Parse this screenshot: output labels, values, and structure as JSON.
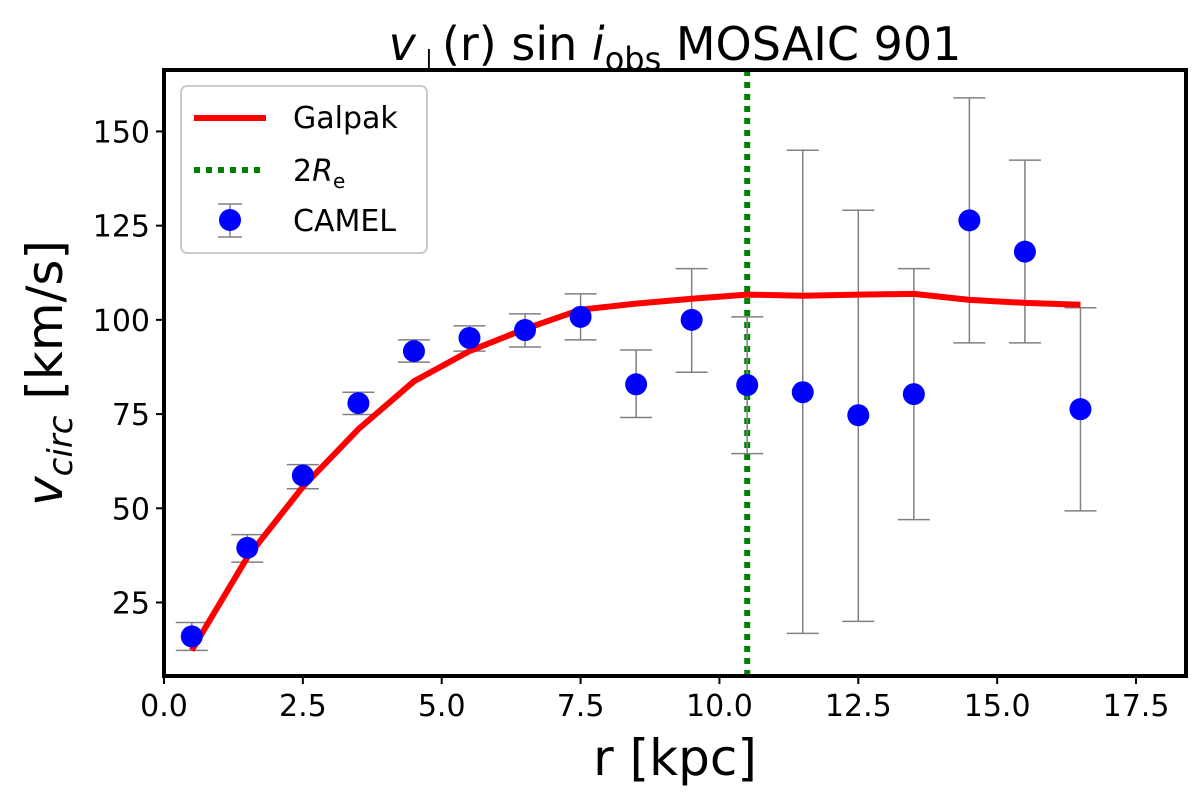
{
  "chart_data": {
    "type": "scatter",
    "title": {
      "main": "v",
      "sub_perp": "⊥",
      "mid": "(r) sin ",
      "i": "i",
      "sub_obs": "obs",
      "tail": " MOSAIC 901"
    },
    "xlabel": "r [kpc]",
    "ylabel": {
      "v": "v",
      "sub": "circ",
      "unit": " [km/s]"
    },
    "xlim": [
      0,
      18.4
    ],
    "ylim": [
      5.5,
      166.3
    ],
    "xticks": [
      0.0,
      2.5,
      5.0,
      7.5,
      10.0,
      12.5,
      15.0,
      17.5
    ],
    "xtick_labels": [
      "0.0",
      "2.5",
      "5.0",
      "7.5",
      "10.0",
      "12.5",
      "15.0",
      "17.5"
    ],
    "yticks": [
      25,
      50,
      75,
      100,
      125,
      150
    ],
    "ytick_labels": [
      "25",
      "50",
      "75",
      "100",
      "125",
      "150"
    ],
    "grid": false,
    "legend_position": "top-left",
    "series": [
      {
        "name": "Galpak",
        "kind": "line",
        "color": "#ff0000",
        "x": [
          0.5,
          1.5,
          2.5,
          3.5,
          4.5,
          5.5,
          6.5,
          7.5,
          8.5,
          9.5,
          10.5,
          11.5,
          12.5,
          13.5,
          14.5,
          15.5,
          16.5
        ],
        "y": [
          12.3,
          37,
          55.7,
          71,
          83.7,
          91.7,
          97.6,
          102.7,
          104.3,
          105.6,
          106.7,
          106.4,
          106.7,
          106.9,
          105.3,
          104.5,
          104
        ]
      },
      {
        "name": "2R_e",
        "label_main": "2",
        "label_R": "R",
        "label_sub": "e",
        "kind": "vline",
        "color": "#008000",
        "x": 10.5
      },
      {
        "name": "CAMEL",
        "kind": "errorbar",
        "color": "#0000ff",
        "errcolor": "#808080",
        "x": [
          0.5,
          1.5,
          2.5,
          3.5,
          4.5,
          5.5,
          6.5,
          7.5,
          8.5,
          9.5,
          10.5,
          11.5,
          12.5,
          13.5,
          14.5,
          15.5,
          16.5
        ],
        "y": [
          16,
          39.5,
          58.7,
          77.9,
          91.7,
          95.2,
          97.3,
          100.8,
          82.9,
          100,
          82.7,
          80.8,
          74.7,
          80.3,
          126.4,
          118.1,
          76.3
        ],
        "y_upper": [
          19.7,
          43,
          61.6,
          80.8,
          94.7,
          98.4,
          101.6,
          106.9,
          92,
          113.6,
          100.8,
          145,
          129.1,
          113.6,
          158.9,
          142.4,
          103.2
        ],
        "y_lower": [
          12.3,
          35.7,
          55.2,
          74.9,
          88.8,
          91.7,
          92.8,
          94.7,
          74.1,
          86.1,
          64.5,
          16.8,
          20,
          47,
          93.9,
          93.9,
          49.3
        ]
      }
    ]
  }
}
